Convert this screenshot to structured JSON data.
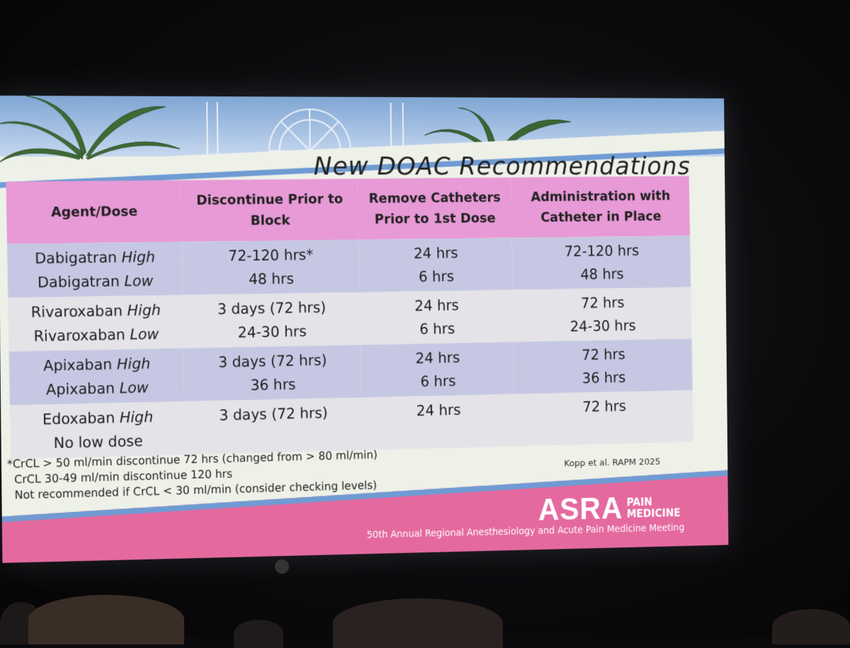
{
  "slide": {
    "title": "New DOAC Recommendations",
    "table": {
      "headers": [
        "Agent/Dose",
        "Discontinue Prior to Block",
        "Remove Catheters Prior to 1st Dose",
        "Administration with Catheter in Place"
      ],
      "rows": [
        {
          "agent": [
            {
              "name": "Dabigatran",
              "level": "High"
            },
            {
              "name": "Dabigatran",
              "level": "Low"
            }
          ],
          "discontinue": [
            "72-120 hrs*",
            "48 hrs"
          ],
          "remove": [
            "24 hrs",
            "6 hrs"
          ],
          "administration": [
            "72-120 hrs",
            "48 hrs"
          ]
        },
        {
          "agent": [
            {
              "name": "Rivaroxaban",
              "level": "High"
            },
            {
              "name": "Rivaroxaban",
              "level": "Low"
            }
          ],
          "discontinue": [
            "3 days (72 hrs)",
            "24-30 hrs"
          ],
          "remove": [
            "24 hrs",
            "6 hrs"
          ],
          "administration": [
            "72 hrs",
            "24-30 hrs"
          ]
        },
        {
          "agent": [
            {
              "name": "Apixaban",
              "level": "High"
            },
            {
              "name": "Apixaban",
              "level": "Low"
            }
          ],
          "discontinue": [
            "3 days (72 hrs)",
            "36 hrs"
          ],
          "remove": [
            "24 hrs",
            "6 hrs"
          ],
          "administration": [
            "72 hrs",
            "36 hrs"
          ]
        },
        {
          "agent": [
            {
              "name": "Edoxaban",
              "level": "High"
            },
            {
              "name": "No low dose",
              "level": ""
            }
          ],
          "discontinue": [
            "3 days (72 hrs)"
          ],
          "remove": [
            "24 hrs"
          ],
          "administration": [
            "72 hrs"
          ]
        }
      ]
    },
    "footnotes": [
      "*CrCL > 50 ml/min discontinue 72 hrs (changed from > 80 ml/min)",
      "CrCL 30-49 ml/min discontinue 120 hrs",
      "Not recommended if CrCL < 30 ml/min (consider checking levels)"
    ],
    "citation": "Kopp et al. RAPM 2025",
    "logo_big": "ASRA",
    "logo_small_1": "PAIN",
    "logo_small_2": "MEDICINE",
    "meeting": "50th Annual Regional Anesthesiology and Acute Pain Medicine Meeting",
    "colors": {
      "header_pink": "#e79ad6",
      "row_lavender": "#c6c8e3",
      "row_gray": "#e3e3e8",
      "accent_blue": "#6f9bd3",
      "bottom_pink": "#e4699f"
    }
  }
}
